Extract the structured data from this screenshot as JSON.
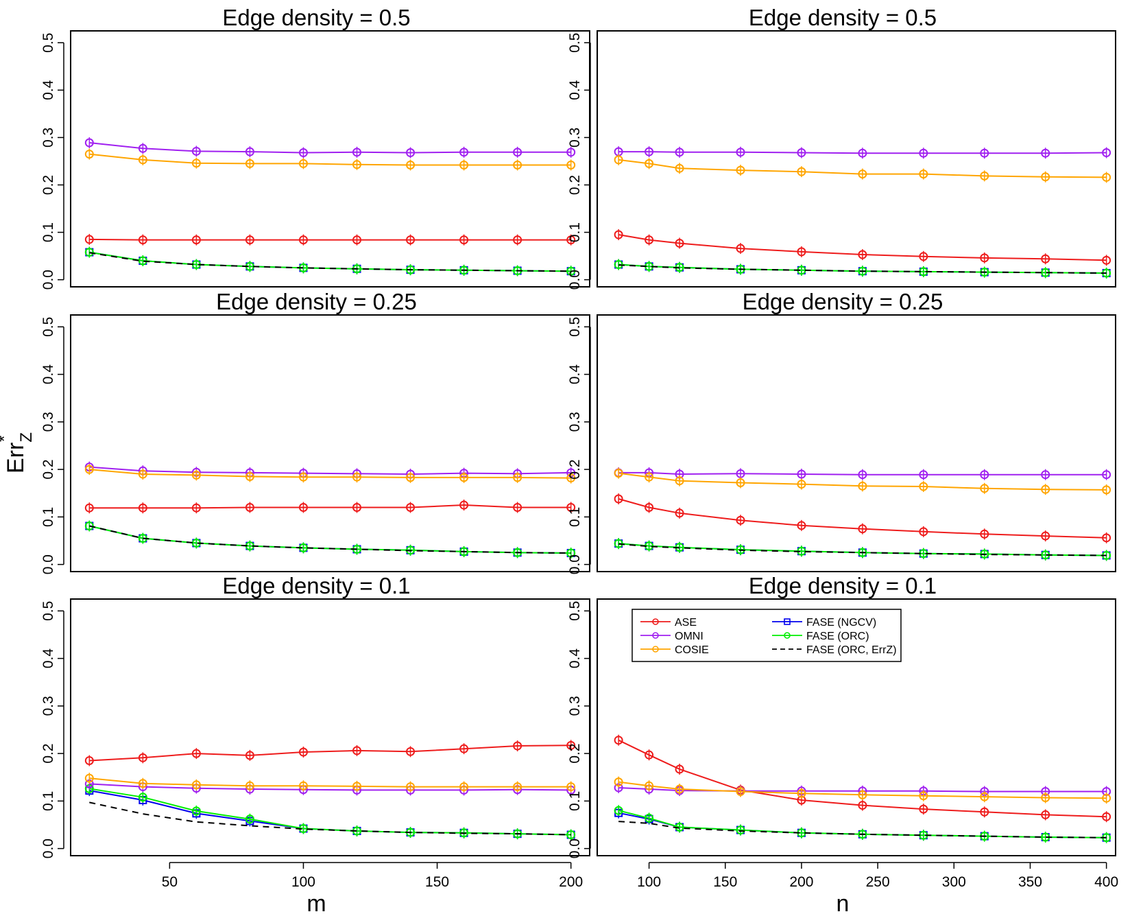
{
  "figure": {
    "ylabel": "Err",
    "ylabel_sub": "Z",
    "ylabel_sup": "*"
  },
  "legend": {
    "entries": [
      {
        "label": "ASE",
        "color": "#ee1c1c",
        "marker": "circle",
        "line": "solid"
      },
      {
        "label": "OMNI",
        "color": "#a020f0",
        "marker": "circle",
        "line": "solid"
      },
      {
        "label": "COSIE",
        "color": "#ffa500",
        "marker": "circle",
        "line": "solid"
      },
      {
        "label": "FASE (NGCV)",
        "color": "#0000ee",
        "marker": "square",
        "line": "solid"
      },
      {
        "label": "FASE (ORC)",
        "color": "#00ee00",
        "marker": "circle",
        "line": "solid"
      },
      {
        "label": "FASE (ORC, ErrZ)",
        "color": "#000000",
        "marker": "none",
        "line": "dashed"
      }
    ]
  },
  "chart_data": [
    {
      "type": "line",
      "title": "Edge density = 0.5",
      "xlabel": "",
      "ylabel": "Err*_Z",
      "x": [
        20,
        40,
        60,
        80,
        100,
        120,
        140,
        160,
        180,
        200
      ],
      "xlim": [
        13,
        207
      ],
      "xticks": [
        50,
        100,
        150,
        200
      ],
      "ylim": [
        -0.015,
        0.525
      ],
      "yticks": [
        0.0,
        0.1,
        0.2,
        0.3,
        0.4,
        0.5
      ],
      "grid": false,
      "series": [
        {
          "name": "ASE",
          "values": [
            0.085,
            0.084,
            0.084,
            0.084,
            0.084,
            0.084,
            0.084,
            0.084,
            0.084,
            0.084
          ]
        },
        {
          "name": "OMNI",
          "values": [
            0.289,
            0.277,
            0.271,
            0.27,
            0.268,
            0.269,
            0.268,
            0.269,
            0.269,
            0.269
          ]
        },
        {
          "name": "COSIE",
          "values": [
            0.265,
            0.253,
            0.246,
            0.245,
            0.245,
            0.243,
            0.242,
            0.242,
            0.242,
            0.242
          ]
        },
        {
          "name": "FASE (NGCV)",
          "values": [
            0.058,
            0.04,
            0.032,
            0.028,
            0.025,
            0.023,
            0.021,
            0.02,
            0.019,
            0.018
          ]
        },
        {
          "name": "FASE (ORC)",
          "values": [
            0.058,
            0.04,
            0.032,
            0.028,
            0.025,
            0.023,
            0.021,
            0.02,
            0.019,
            0.018
          ]
        },
        {
          "name": "FASE (ORC, ErrZ)",
          "values": [
            0.057,
            0.039,
            0.032,
            0.028,
            0.025,
            0.023,
            0.021,
            0.02,
            0.019,
            0.018
          ]
        }
      ]
    },
    {
      "type": "line",
      "title": "Edge density = 0.5",
      "xlabel": "",
      "ylabel": "",
      "x": [
        80,
        100,
        120,
        160,
        200,
        240,
        280,
        320,
        360,
        400
      ],
      "xlim": [
        66,
        406
      ],
      "xticks": [
        100,
        150,
        200,
        250,
        300,
        350,
        400
      ],
      "ylim": [
        -0.015,
        0.525
      ],
      "yticks": [
        0.0,
        0.1,
        0.2,
        0.3,
        0.4,
        0.5
      ],
      "grid": false,
      "series": [
        {
          "name": "ASE",
          "values": [
            0.095,
            0.084,
            0.077,
            0.066,
            0.059,
            0.053,
            0.049,
            0.046,
            0.044,
            0.041
          ]
        },
        {
          "name": "OMNI",
          "values": [
            0.27,
            0.27,
            0.269,
            0.269,
            0.268,
            0.267,
            0.267,
            0.267,
            0.267,
            0.268
          ]
        },
        {
          "name": "COSIE",
          "values": [
            0.253,
            0.245,
            0.235,
            0.231,
            0.228,
            0.223,
            0.223,
            0.219,
            0.217,
            0.216
          ]
        },
        {
          "name": "FASE (NGCV)",
          "values": [
            0.032,
            0.028,
            0.026,
            0.022,
            0.02,
            0.018,
            0.017,
            0.016,
            0.015,
            0.014
          ]
        },
        {
          "name": "FASE (ORC)",
          "values": [
            0.032,
            0.028,
            0.026,
            0.022,
            0.02,
            0.018,
            0.017,
            0.016,
            0.015,
            0.014
          ]
        },
        {
          "name": "FASE (ORC, ErrZ)",
          "values": [
            0.031,
            0.028,
            0.025,
            0.022,
            0.02,
            0.018,
            0.017,
            0.016,
            0.015,
            0.014
          ]
        }
      ]
    },
    {
      "type": "line",
      "title": "Edge density = 0.25",
      "xlabel": "",
      "ylabel": "",
      "x": [
        20,
        40,
        60,
        80,
        100,
        120,
        140,
        160,
        180,
        200
      ],
      "xlim": [
        13,
        207
      ],
      "xticks": [
        50,
        100,
        150,
        200
      ],
      "ylim": [
        -0.015,
        0.525
      ],
      "yticks": [
        0.0,
        0.1,
        0.2,
        0.3,
        0.4,
        0.5
      ],
      "grid": false,
      "series": [
        {
          "name": "ASE",
          "values": [
            0.119,
            0.119,
            0.119,
            0.12,
            0.12,
            0.12,
            0.12,
            0.125,
            0.12,
            0.12
          ]
        },
        {
          "name": "OMNI",
          "values": [
            0.205,
            0.197,
            0.194,
            0.193,
            0.192,
            0.191,
            0.19,
            0.192,
            0.191,
            0.193
          ]
        },
        {
          "name": "COSIE",
          "values": [
            0.2,
            0.19,
            0.188,
            0.185,
            0.184,
            0.184,
            0.183,
            0.183,
            0.183,
            0.182
          ]
        },
        {
          "name": "FASE (NGCV)",
          "values": [
            0.081,
            0.055,
            0.045,
            0.039,
            0.035,
            0.032,
            0.03,
            0.027,
            0.025,
            0.024
          ]
        },
        {
          "name": "FASE (ORC)",
          "values": [
            0.081,
            0.055,
            0.045,
            0.039,
            0.035,
            0.032,
            0.03,
            0.027,
            0.025,
            0.024
          ]
        },
        {
          "name": "FASE (ORC, ErrZ)",
          "values": [
            0.081,
            0.055,
            0.045,
            0.039,
            0.035,
            0.032,
            0.029,
            0.027,
            0.025,
            0.024
          ]
        }
      ]
    },
    {
      "type": "line",
      "title": "Edge density = 0.25",
      "xlabel": "",
      "ylabel": "",
      "x": [
        80,
        100,
        120,
        160,
        200,
        240,
        280,
        320,
        360,
        400
      ],
      "xlim": [
        66,
        406
      ],
      "xticks": [
        100,
        150,
        200,
        250,
        300,
        350,
        400
      ],
      "ylim": [
        -0.015,
        0.525
      ],
      "yticks": [
        0.0,
        0.1,
        0.2,
        0.3,
        0.4,
        0.5
      ],
      "grid": false,
      "series": [
        {
          "name": "ASE",
          "values": [
            0.138,
            0.12,
            0.108,
            0.093,
            0.082,
            0.075,
            0.069,
            0.064,
            0.06,
            0.056
          ]
        },
        {
          "name": "OMNI",
          "values": [
            0.193,
            0.193,
            0.19,
            0.191,
            0.19,
            0.189,
            0.189,
            0.189,
            0.189,
            0.189
          ]
        },
        {
          "name": "COSIE",
          "values": [
            0.192,
            0.184,
            0.176,
            0.172,
            0.169,
            0.165,
            0.164,
            0.16,
            0.158,
            0.157
          ]
        },
        {
          "name": "FASE (NGCV)",
          "values": [
            0.044,
            0.039,
            0.036,
            0.031,
            0.028,
            0.025,
            0.023,
            0.022,
            0.02,
            0.019
          ]
        },
        {
          "name": "FASE (ORC)",
          "values": [
            0.044,
            0.039,
            0.036,
            0.031,
            0.028,
            0.025,
            0.023,
            0.022,
            0.02,
            0.019
          ]
        },
        {
          "name": "FASE (ORC, ErrZ)",
          "values": [
            0.043,
            0.038,
            0.035,
            0.03,
            0.027,
            0.025,
            0.023,
            0.021,
            0.02,
            0.019
          ]
        }
      ]
    },
    {
      "type": "line",
      "title": "Edge density = 0.1",
      "xlabel": "m",
      "ylabel": "",
      "x": [
        20,
        40,
        60,
        80,
        100,
        120,
        140,
        160,
        180,
        200
      ],
      "xlim": [
        13,
        207
      ],
      "xticks": [
        50,
        100,
        150,
        200
      ],
      "ylim": [
        -0.015,
        0.525
      ],
      "yticks": [
        0.0,
        0.1,
        0.2,
        0.3,
        0.4,
        0.5
      ],
      "grid": false,
      "series": [
        {
          "name": "ASE",
          "values": [
            0.185,
            0.191,
            0.2,
            0.196,
            0.203,
            0.206,
            0.204,
            0.21,
            0.216,
            0.217
          ]
        },
        {
          "name": "OMNI",
          "values": [
            0.136,
            0.13,
            0.127,
            0.125,
            0.124,
            0.123,
            0.123,
            0.123,
            0.124,
            0.123
          ]
        },
        {
          "name": "COSIE",
          "values": [
            0.148,
            0.137,
            0.134,
            0.132,
            0.132,
            0.131,
            0.13,
            0.13,
            0.13,
            0.13
          ]
        },
        {
          "name": "FASE (NGCV)",
          "values": [
            0.122,
            0.102,
            0.074,
            0.058,
            0.042,
            0.037,
            0.034,
            0.033,
            0.031,
            0.029
          ]
        },
        {
          "name": "FASE (ORC)",
          "values": [
            0.126,
            0.108,
            0.079,
            0.062,
            0.042,
            0.037,
            0.034,
            0.033,
            0.031,
            0.029
          ]
        },
        {
          "name": "FASE (ORC, ErrZ)",
          "values": [
            0.097,
            0.073,
            0.056,
            0.048,
            0.041,
            0.037,
            0.034,
            0.032,
            0.031,
            0.029
          ]
        }
      ]
    },
    {
      "type": "line",
      "title": "Edge density = 0.1",
      "xlabel": "n",
      "ylabel": "",
      "x": [
        80,
        100,
        120,
        160,
        200,
        240,
        280,
        320,
        360,
        400
      ],
      "xlim": [
        66,
        406
      ],
      "xticks": [
        100,
        150,
        200,
        250,
        300,
        350,
        400
      ],
      "ylim": [
        -0.015,
        0.525
      ],
      "yticks": [
        0.0,
        0.1,
        0.2,
        0.3,
        0.4,
        0.5
      ],
      "grid": false,
      "legend": "top-left",
      "series": [
        {
          "name": "ASE",
          "values": [
            0.228,
            0.197,
            0.167,
            0.123,
            0.102,
            0.091,
            0.083,
            0.077,
            0.071,
            0.067
          ]
        },
        {
          "name": "OMNI",
          "values": [
            0.128,
            0.125,
            0.122,
            0.121,
            0.121,
            0.121,
            0.121,
            0.12,
            0.12,
            0.12
          ]
        },
        {
          "name": "COSIE",
          "values": [
            0.14,
            0.132,
            0.125,
            0.12,
            0.116,
            0.113,
            0.111,
            0.109,
            0.107,
            0.106
          ]
        },
        {
          "name": "FASE (NGCV)",
          "values": [
            0.075,
            0.062,
            0.045,
            0.039,
            0.033,
            0.03,
            0.028,
            0.026,
            0.024,
            0.023
          ]
        },
        {
          "name": "FASE (ORC)",
          "values": [
            0.08,
            0.064,
            0.045,
            0.039,
            0.033,
            0.03,
            0.028,
            0.026,
            0.024,
            0.023
          ]
        },
        {
          "name": "FASE (ORC, ErrZ)",
          "values": [
            0.057,
            0.053,
            0.043,
            0.037,
            0.033,
            0.03,
            0.028,
            0.026,
            0.024,
            0.023
          ]
        }
      ]
    }
  ]
}
